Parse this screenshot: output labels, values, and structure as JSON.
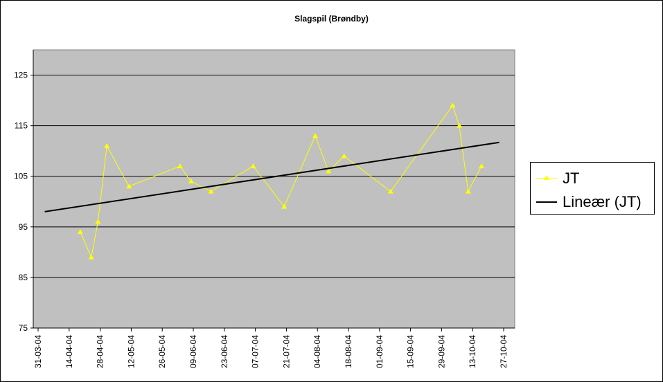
{
  "chart_data": {
    "type": "line",
    "title": "Slagspil (Brøndby)",
    "xlabel": "",
    "ylabel": "",
    "x_ticks": [
      "31-03-04",
      "14-04-04",
      "28-04-04",
      "12-05-04",
      "26-05-04",
      "09-06-04",
      "23-06-04",
      "07-07-04",
      "21-07-04",
      "04-08-04",
      "18-08-04",
      "01-09-04",
      "15-09-04",
      "29-09-04",
      "13-10-04",
      "27-10-04"
    ],
    "xlim": [
      "2004-03-31",
      "2004-10-27"
    ],
    "y_ticks": [
      75,
      85,
      95,
      105,
      115,
      125
    ],
    "ylim": [
      75,
      130
    ],
    "grid": "horizontal",
    "legend_position": "right",
    "plot_background": "#c0c0c0",
    "series": [
      {
        "name": "JT",
        "kind": "line-with-markers",
        "color": "#ffff00",
        "marker": "triangle",
        "points": [
          {
            "x": "2004-04-19",
            "y": 94
          },
          {
            "x": "2004-04-24",
            "y": 89
          },
          {
            "x": "2004-04-27",
            "y": 96
          },
          {
            "x": "2004-05-01",
            "y": 111
          },
          {
            "x": "2004-05-11",
            "y": 103
          },
          {
            "x": "2004-06-03",
            "y": 107
          },
          {
            "x": "2004-06-08",
            "y": 104
          },
          {
            "x": "2004-06-17",
            "y": 102
          },
          {
            "x": "2004-07-06",
            "y": 107
          },
          {
            "x": "2004-07-20",
            "y": 99
          },
          {
            "x": "2004-08-03",
            "y": 113
          },
          {
            "x": "2004-08-09",
            "y": 106
          },
          {
            "x": "2004-08-16",
            "y": 109
          },
          {
            "x": "2004-09-06",
            "y": 102
          },
          {
            "x": "2004-10-04",
            "y": 119
          },
          {
            "x": "2004-10-07",
            "y": 115
          },
          {
            "x": "2004-10-11",
            "y": 102
          },
          {
            "x": "2004-10-17",
            "y": 107
          }
        ]
      },
      {
        "name": "Lineær (JT)",
        "kind": "trendline",
        "color": "#000000",
        "points": [
          {
            "x": "2004-04-03",
            "y": 98
          },
          {
            "x": "2004-10-25",
            "y": 111.7
          }
        ]
      }
    ]
  }
}
